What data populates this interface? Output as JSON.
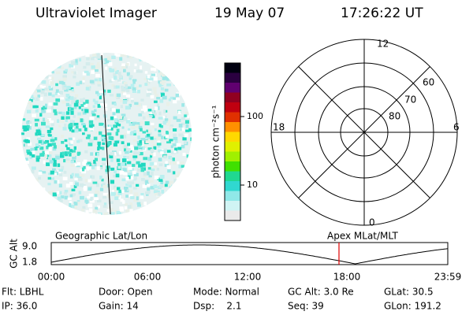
{
  "header": {
    "instrument": "Ultraviolet Imager",
    "date": "19 May 07",
    "time": "17:26:22 UT"
  },
  "colorbar": {
    "label": "photon cm⁻²s⁻¹",
    "ticks": [
      "100",
      "10"
    ]
  },
  "polar_grid": {
    "mlt_labels": [
      "12",
      "18",
      "6",
      "0"
    ],
    "lat_labels": [
      "80",
      "70",
      "60"
    ]
  },
  "orbit_plot": {
    "left_label": "Geographic Lat/Lon",
    "right_label": "Apex MLat/MLT",
    "y_label": "GC Alt",
    "y_ticks": [
      "9.0",
      "1.8"
    ],
    "x_ticks": [
      "00:00",
      "06:00",
      "12:00",
      "18:00",
      "23:59"
    ]
  },
  "footer": {
    "rows": [
      [
        "Flt: LBHL",
        "Door: Open",
        "Mode: Normal",
        "GC Alt: 3.0 Re",
        "GLat: 30.5"
      ],
      [
        "IP: 36.0",
        "Gain: 14",
        "Dsp:    2.1",
        "Seq: 39",
        "GLon: 191.2"
      ]
    ]
  }
}
